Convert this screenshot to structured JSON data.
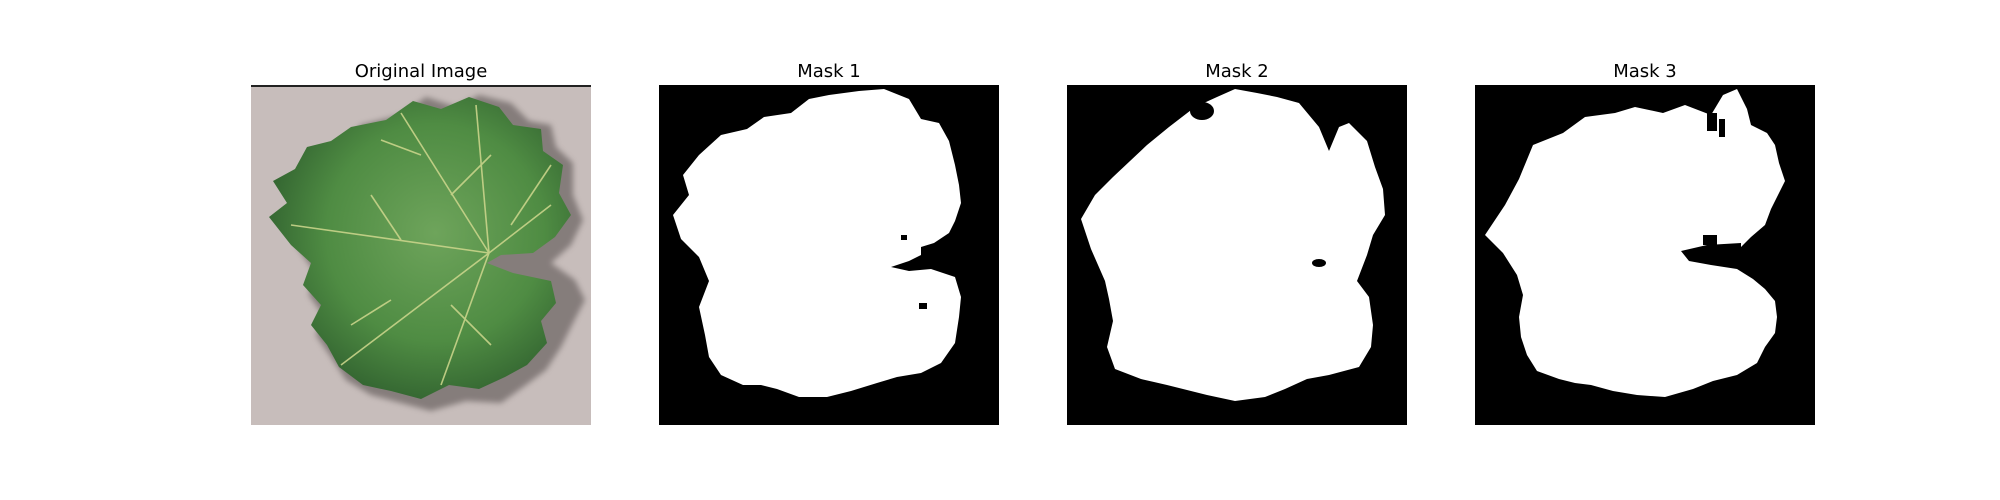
{
  "figure": {
    "panels": [
      {
        "title": "Original Image",
        "content": "grape-leaf-photo"
      },
      {
        "title": "Mask 1",
        "content": "binary-mask"
      },
      {
        "title": "Mask 2",
        "content": "binary-mask"
      },
      {
        "title": "Mask 3",
        "content": "binary-mask"
      }
    ],
    "colors": {
      "background": "#ffffff",
      "photo_background": "#c7bdbb",
      "leaf_green": "#4f8c43",
      "leaf_dark": "#2f5f2e",
      "leaf_light": "#6ea45b",
      "vein": "#c9d48a",
      "mask_background": "#000000",
      "mask_foreground": "#ffffff"
    }
  }
}
